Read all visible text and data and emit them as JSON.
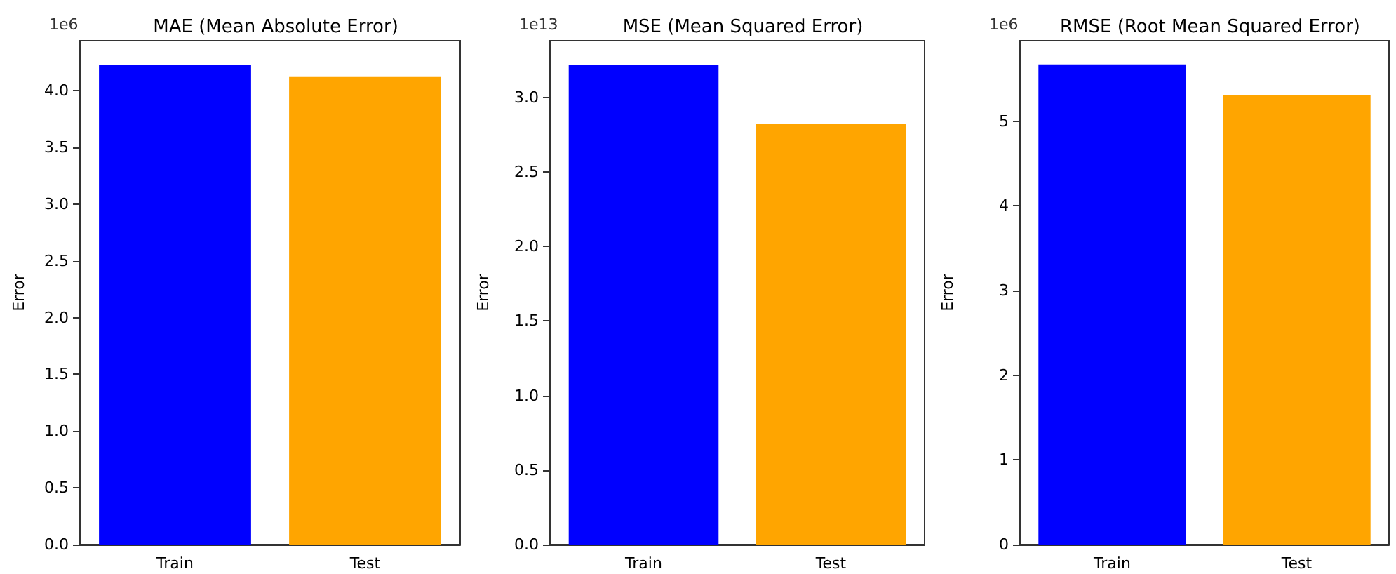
{
  "chart_data": [
    {
      "type": "bar",
      "title": "MAE (Mean Absolute Error)",
      "ylabel": "Error",
      "annotations": [
        "1e6"
      ],
      "categories": [
        "Train",
        "Test"
      ],
      "values": [
        4.23,
        4.12
      ],
      "colors": [
        "#0000ff",
        "#ffa500"
      ],
      "ylim": [
        0,
        4.44
      ],
      "yticks": [
        {
          "value": 0,
          "label": "0.0"
        },
        0.5,
        {
          "value": 1,
          "label": "1.0"
        },
        1.5,
        {
          "value": 2,
          "label": "2.0"
        },
        2.5,
        {
          "value": 3,
          "label": "3.0"
        },
        3.5,
        {
          "value": 4,
          "label": "4.0"
        }
      ]
    },
    {
      "type": "bar",
      "title": "MSE (Mean Squared Error)",
      "ylabel": "Error",
      "annotations": [
        "1e13"
      ],
      "categories": [
        "Train",
        "Test"
      ],
      "values": [
        3.22,
        2.82
      ],
      "colors": [
        "#0000ff",
        "#ffa500"
      ],
      "ylim": [
        0,
        3.38
      ],
      "yticks": [
        {
          "value": 0,
          "label": "0.0"
        },
        0.5,
        {
          "value": 1,
          "label": "1.0"
        },
        1.5,
        {
          "value": 2,
          "label": "2.0"
        },
        2.5,
        {
          "value": 3,
          "label": "3.0"
        }
      ]
    },
    {
      "type": "bar",
      "title": "RMSE (Root Mean Squared Error)",
      "ylabel": "Error",
      "annotations": [
        "1e6"
      ],
      "categories": [
        "Train",
        "Test"
      ],
      "values": [
        5.67,
        5.31
      ],
      "colors": [
        "#0000ff",
        "#ffa500"
      ],
      "ylim": [
        0,
        5.95
      ],
      "yticks": [
        0,
        1,
        2,
        3,
        4,
        5
      ]
    }
  ]
}
